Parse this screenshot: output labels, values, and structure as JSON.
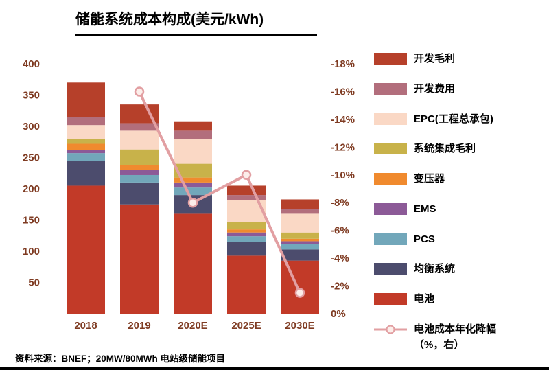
{
  "title": "储能系统成本构成(美元/kWh)",
  "source": "资料来源：BNEF；20MW/80MWh 电站级储能项目",
  "colors": {
    "battery": "#c23a28",
    "balance_system": "#4c4c6d",
    "pcs": "#72a7ba",
    "ems": "#8c5a97",
    "transformer": "#f08a2e",
    "integration_margin": "#c8b24a",
    "epc": "#fad8c5",
    "dev_expense": "#b26e7c",
    "dev_margin": "#b6402a",
    "line": "#e29fa2",
    "axis_text": "#7f3b22"
  },
  "chart_data": {
    "type": "bar",
    "stacked": true,
    "title": "储能系统成本构成(美元/kWh)",
    "categories": [
      "2018",
      "2019",
      "2020E",
      "2025E",
      "2030E"
    ],
    "series": [
      {
        "name": "电池",
        "color": "#c23a28",
        "values": [
          205,
          175,
          160,
          93,
          85
        ]
      },
      {
        "name": "均衡系统",
        "color": "#4c4c6d",
        "values": [
          40,
          35,
          30,
          22,
          18
        ]
      },
      {
        "name": "PCS",
        "color": "#72a7ba",
        "values": [
          12,
          12,
          12,
          9,
          8
        ]
      },
      {
        "name": "EMS",
        "color": "#8c5a97",
        "values": [
          5,
          8,
          8,
          6,
          5
        ]
      },
      {
        "name": "变压器",
        "color": "#f08a2e",
        "values": [
          10,
          8,
          8,
          5,
          4
        ]
      },
      {
        "name": "系统集成毛利",
        "color": "#c8b24a",
        "values": [
          8,
          25,
          22,
          12,
          10
        ]
      },
      {
        "name": "EPC(工程总承包)",
        "color": "#fad8c5",
        "values": [
          22,
          30,
          40,
          35,
          30
        ]
      },
      {
        "name": "开发费用",
        "color": "#b26e7c",
        "values": [
          13,
          12,
          13,
          8,
          8
        ]
      },
      {
        "name": "开发毛利",
        "color": "#b6402a",
        "values": [
          55,
          30,
          15,
          15,
          15
        ]
      }
    ],
    "line_series": {
      "name": "电池成本年化降幅（%，右）",
      "color": "#e29fa2",
      "x": [
        "2019",
        "2020E",
        "2025E",
        "2030E"
      ],
      "values": [
        -16,
        -8,
        -10,
        -1.5
      ]
    },
    "y_left": {
      "min": 0,
      "max": 400,
      "ticks": [
        400,
        350,
        300,
        250,
        200,
        150,
        100,
        50
      ]
    },
    "y_right": {
      "min": -18,
      "max": 0,
      "inverted_display": true,
      "ticks": [
        "-18%",
        "-16%",
        "-14%",
        "-12%",
        "-10%",
        "-8%",
        "-6%",
        "-4%",
        "-2%",
        "0%"
      ]
    },
    "grid": false,
    "legend_position": "right"
  },
  "legend": [
    {
      "label": "开发毛利",
      "color": "#b6402a",
      "type": "box"
    },
    {
      "label": "开发费用",
      "color": "#b26e7c",
      "type": "box"
    },
    {
      "label": "EPC(工程总承包)",
      "color": "#fad8c5",
      "type": "box"
    },
    {
      "label": "系统集成毛利",
      "color": "#c8b24a",
      "type": "box"
    },
    {
      "label": "变压器",
      "color": "#f08a2e",
      "type": "box"
    },
    {
      "label": "EMS",
      "color": "#8c5a97",
      "type": "box"
    },
    {
      "label": "PCS",
      "color": "#72a7ba",
      "type": "box"
    },
    {
      "label": "均衡系统",
      "color": "#4c4c6d",
      "type": "box"
    },
    {
      "label": "电池",
      "color": "#c23a28",
      "type": "box"
    },
    {
      "label": "电池成本年化降幅",
      "label2": "（%，右）",
      "color": "#e29fa2",
      "type": "line"
    }
  ]
}
